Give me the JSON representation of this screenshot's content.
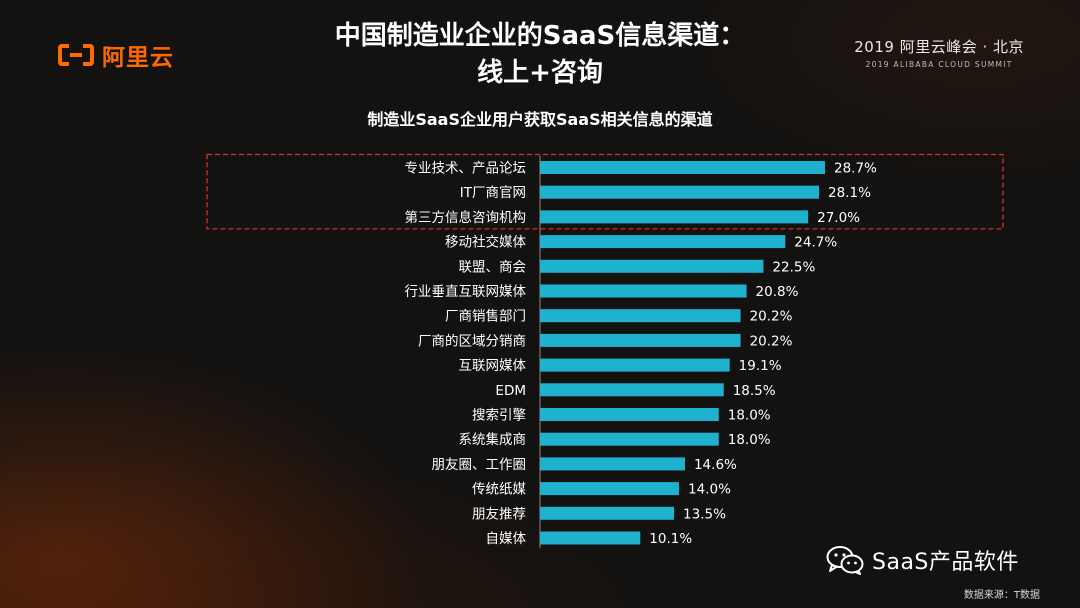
{
  "header": {
    "logo_text": "阿里云",
    "summit_main": "2019 阿里云峰会 · 北京",
    "summit_sub": "2019 ALIBABA CLOUD SUMMIT",
    "title_line1": "中国制造业企业的SaaS信息渠道：",
    "title_line2": "线上+咨询"
  },
  "colors": {
    "bar": "#1fb2cf",
    "highlight_border": "#d9302c",
    "logo": "#ff6a00"
  },
  "chart_data": {
    "type": "bar",
    "orientation": "horizontal",
    "title": "制造业SaaS企业用户获取SaaS相关信息的渠道",
    "categories": [
      "专业技术、产品论坛",
      "IT厂商官网",
      "第三方信息咨询机构",
      "移动社交媒体",
      "联盟、商会",
      "行业垂直互联网媒体",
      "厂商销售部门",
      "厂商的区域分销商",
      "互联网媒体",
      "EDM",
      "搜索引擎",
      "系统集成商",
      "朋友圈、工作圈",
      "传统纸媒",
      "朋友推荐",
      "自媒体"
    ],
    "values": [
      28.7,
      28.1,
      27.0,
      24.7,
      22.5,
      20.8,
      20.2,
      20.2,
      19.1,
      18.5,
      18.0,
      18.0,
      14.6,
      14.0,
      13.5,
      10.1
    ],
    "value_labels": [
      "28.7%",
      "28.1%",
      "27.0%",
      "24.7%",
      "22.5%",
      "20.8%",
      "20.2%",
      "20.2%",
      "19.1%",
      "18.5%",
      "18.0%",
      "18.0%",
      "14.6%",
      "14.0%",
      "13.5%",
      "10.1%"
    ],
    "highlighted_categories": [
      "专业技术、产品论坛",
      "IT厂商官网",
      "第三方信息咨询机构"
    ],
    "xlim": [
      0,
      28.7
    ],
    "grid": false,
    "legend": "none"
  },
  "footer": {
    "wechat_account": "SaaS产品软件",
    "source": "数据来源：T数据"
  }
}
